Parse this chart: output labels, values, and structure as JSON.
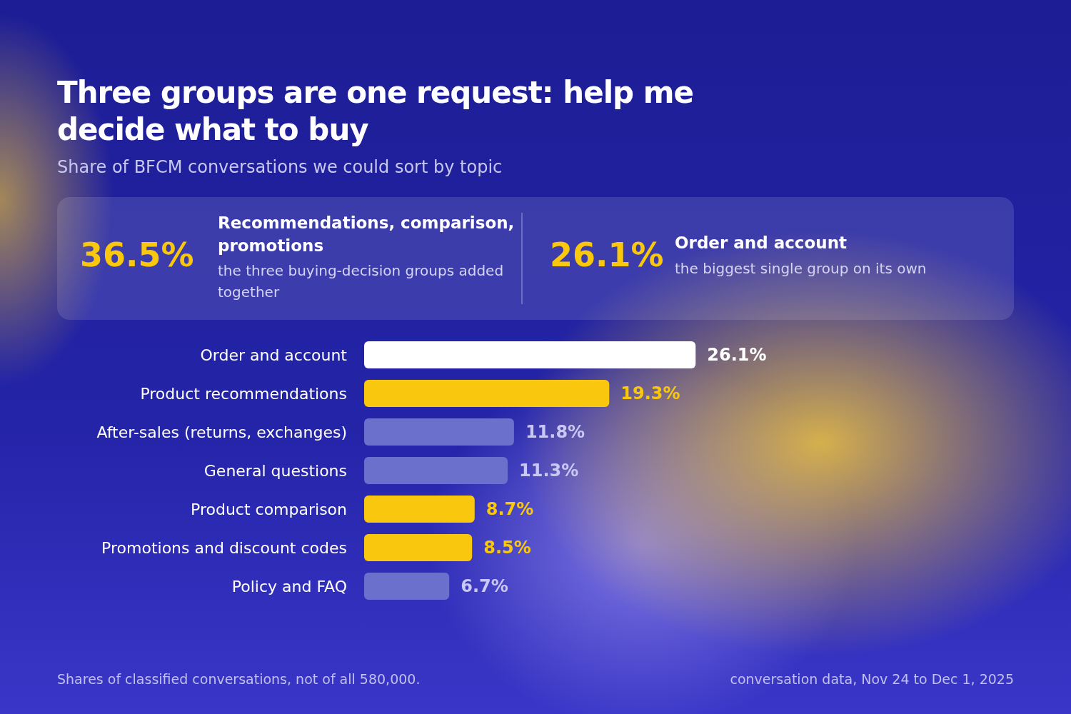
{
  "chart_data": {
    "type": "bar",
    "orientation": "horizontal",
    "title": "Three groups are one request: help me decide what to buy",
    "subtitle": "Share of BFCM conversations we could sort by topic",
    "categories": [
      "Order and account",
      "Product recommendations",
      "After-sales (returns, exchanges)",
      "General questions",
      "Product comparison",
      "Promotions and discount codes",
      "Policy and FAQ"
    ],
    "values": [
      26.1,
      19.3,
      11.8,
      11.3,
      8.7,
      8.5,
      6.7
    ],
    "colors": [
      "#ffffff",
      "#f9c80e",
      "#6b70cc",
      "#6b70cc",
      "#f9c80e",
      "#f9c80e",
      "#6b70cc"
    ],
    "value_labels": [
      "26.1%",
      "19.3%",
      "11.8%",
      "11.3%",
      "8.7%",
      "8.5%",
      "6.7%"
    ],
    "annotations": [
      "36.5%",
      "Recommendations, comparison, promotions",
      "the three buying-decision groups added together",
      "26.1%",
      "Order and account",
      "the biggest single group on its own",
      "Shares of classified conversations, not of all 580,000.",
      "conversation data, Nov 24 to Dec 1, 2025"
    ]
  }
}
